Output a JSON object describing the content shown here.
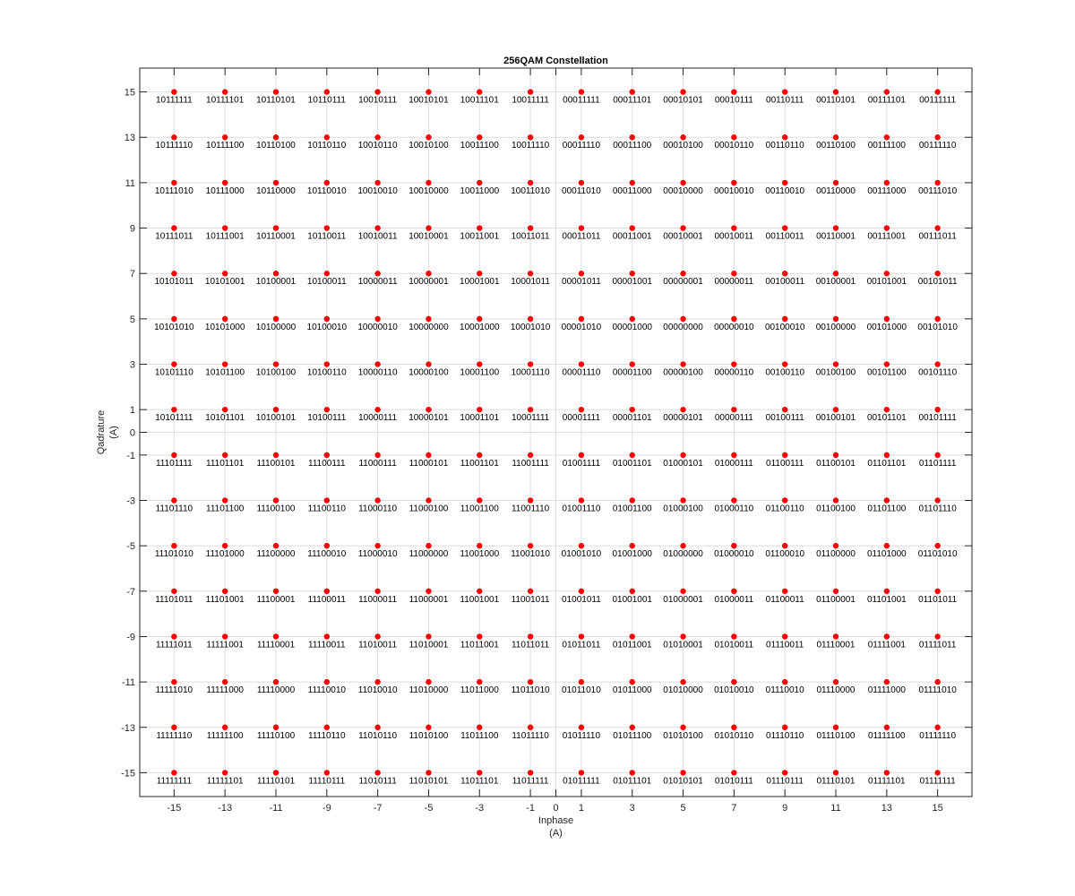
{
  "chart_data": {
    "type": "scatter",
    "title": "256QAM Constellation",
    "xlabel": "Inphase",
    "xunit": "(A)",
    "ylabel": "Qadrature",
    "yunit": "(A)",
    "xlim": [
      -16.35,
      16.35
    ],
    "ylim": [
      -16.05,
      16.05
    ],
    "xticks": [
      -15,
      -13,
      -11,
      -9,
      -7,
      -5,
      -3,
      -1,
      0,
      1,
      3,
      5,
      7,
      9,
      11,
      13,
      15
    ],
    "yticks": [
      15,
      13,
      11,
      9,
      7,
      5,
      3,
      1,
      0,
      -1,
      -3,
      -5,
      -7,
      -9,
      -11,
      -13,
      -15
    ],
    "grid": true,
    "marker_color": "#ff0000",
    "levels_x": [
      -15,
      -13,
      -11,
      -9,
      -7,
      -5,
      -3,
      -1,
      1,
      3,
      5,
      7,
      9,
      11,
      13,
      15
    ],
    "levels_y": [
      15,
      13,
      11,
      9,
      7,
      5,
      3,
      1,
      -1,
      -3,
      -5,
      -7,
      -9,
      -11,
      -13,
      -15
    ],
    "labels": [
      [
        "10111111",
        "10111101",
        "10110101",
        "10110111",
        "10010111",
        "10010101",
        "10011101",
        "10011111",
        "00011111",
        "00011101",
        "00010101",
        "00010111",
        "00110111",
        "00110101",
        "00111101",
        "00111111"
      ],
      [
        "10111110",
        "10111100",
        "10110100",
        "10110110",
        "10010110",
        "10010100",
        "10011100",
        "10011110",
        "00011110",
        "00011100",
        "00010100",
        "00010110",
        "00110110",
        "00110100",
        "00111100",
        "00111110"
      ],
      [
        "10111010",
        "10111000",
        "10110000",
        "10110010",
        "10010010",
        "10010000",
        "10011000",
        "10011010",
        "00011010",
        "00011000",
        "00010000",
        "00010010",
        "00110010",
        "00110000",
        "00111000",
        "00111010"
      ],
      [
        "10111011",
        "10111001",
        "10110001",
        "10110011",
        "10010011",
        "10010001",
        "10011001",
        "10011011",
        "00011011",
        "00011001",
        "00010001",
        "00010011",
        "00110011",
        "00110001",
        "00111001",
        "00111011"
      ],
      [
        "10101011",
        "10101001",
        "10100001",
        "10100011",
        "10000011",
        "10000001",
        "10001001",
        "10001011",
        "00001011",
        "00001001",
        "00000001",
        "00000011",
        "00100011",
        "00100001",
        "00101001",
        "00101011"
      ],
      [
        "10101010",
        "10101000",
        "10100000",
        "10100010",
        "10000010",
        "10000000",
        "10001000",
        "10001010",
        "00001010",
        "00001000",
        "00000000",
        "00000010",
        "00100010",
        "00100000",
        "00101000",
        "00101010"
      ],
      [
        "10101110",
        "10101100",
        "10100100",
        "10100110",
        "10000110",
        "10000100",
        "10001100",
        "10001110",
        "00001110",
        "00001100",
        "00000100",
        "00000110",
        "00100110",
        "00100100",
        "00101100",
        "00101110"
      ],
      [
        "10101111",
        "10101101",
        "10100101",
        "10100111",
        "10000111",
        "10000101",
        "10001101",
        "10001111",
        "00001111",
        "00001101",
        "00000101",
        "00000111",
        "00100111",
        "00100101",
        "00101101",
        "00101111"
      ],
      [
        "11101111",
        "11101101",
        "11100101",
        "11100111",
        "11000111",
        "11000101",
        "11001101",
        "11001111",
        "01001111",
        "01001101",
        "01000101",
        "01000111",
        "01100111",
        "01100101",
        "01101101",
        "01101111"
      ],
      [
        "11101110",
        "11101100",
        "11100100",
        "11100110",
        "11000110",
        "11000100",
        "11001100",
        "11001110",
        "01001110",
        "01001100",
        "01000100",
        "01000110",
        "01100110",
        "01100100",
        "01101100",
        "01101110"
      ],
      [
        "11101010",
        "11101000",
        "11100000",
        "11100010",
        "11000010",
        "11000000",
        "11001000",
        "11001010",
        "01001010",
        "01001000",
        "01000000",
        "01000010",
        "01100010",
        "01100000",
        "01101000",
        "01101010"
      ],
      [
        "11101011",
        "11101001",
        "11100001",
        "11100011",
        "11000011",
        "11000001",
        "11001001",
        "11001011",
        "01001011",
        "01001001",
        "01000001",
        "01000011",
        "01100011",
        "01100001",
        "01101001",
        "01101011"
      ],
      [
        "11111011",
        "11111001",
        "11110001",
        "11110011",
        "11010011",
        "11010001",
        "11011001",
        "11011011",
        "01011011",
        "01011001",
        "01010001",
        "01010011",
        "01110011",
        "01110001",
        "01111001",
        "01111011"
      ],
      [
        "11111010",
        "11111000",
        "11110000",
        "11110010",
        "11010010",
        "11010000",
        "11011000",
        "11011010",
        "01011010",
        "01011000",
        "01010000",
        "01010010",
        "01110010",
        "01110000",
        "01111000",
        "01111010"
      ],
      [
        "11111110",
        "11111100",
        "11110100",
        "11110110",
        "11010110",
        "11010100",
        "11011100",
        "11011110",
        "01011110",
        "01011100",
        "01010100",
        "01010110",
        "01110110",
        "01110100",
        "01111100",
        "01111110"
      ],
      [
        "11111111",
        "11111101",
        "11110101",
        "11110111",
        "11010111",
        "11010101",
        "11011101",
        "11011111",
        "01011111",
        "01011101",
        "01010101",
        "01010111",
        "01110111",
        "01110101",
        "01111101",
        "01111111"
      ]
    ]
  }
}
